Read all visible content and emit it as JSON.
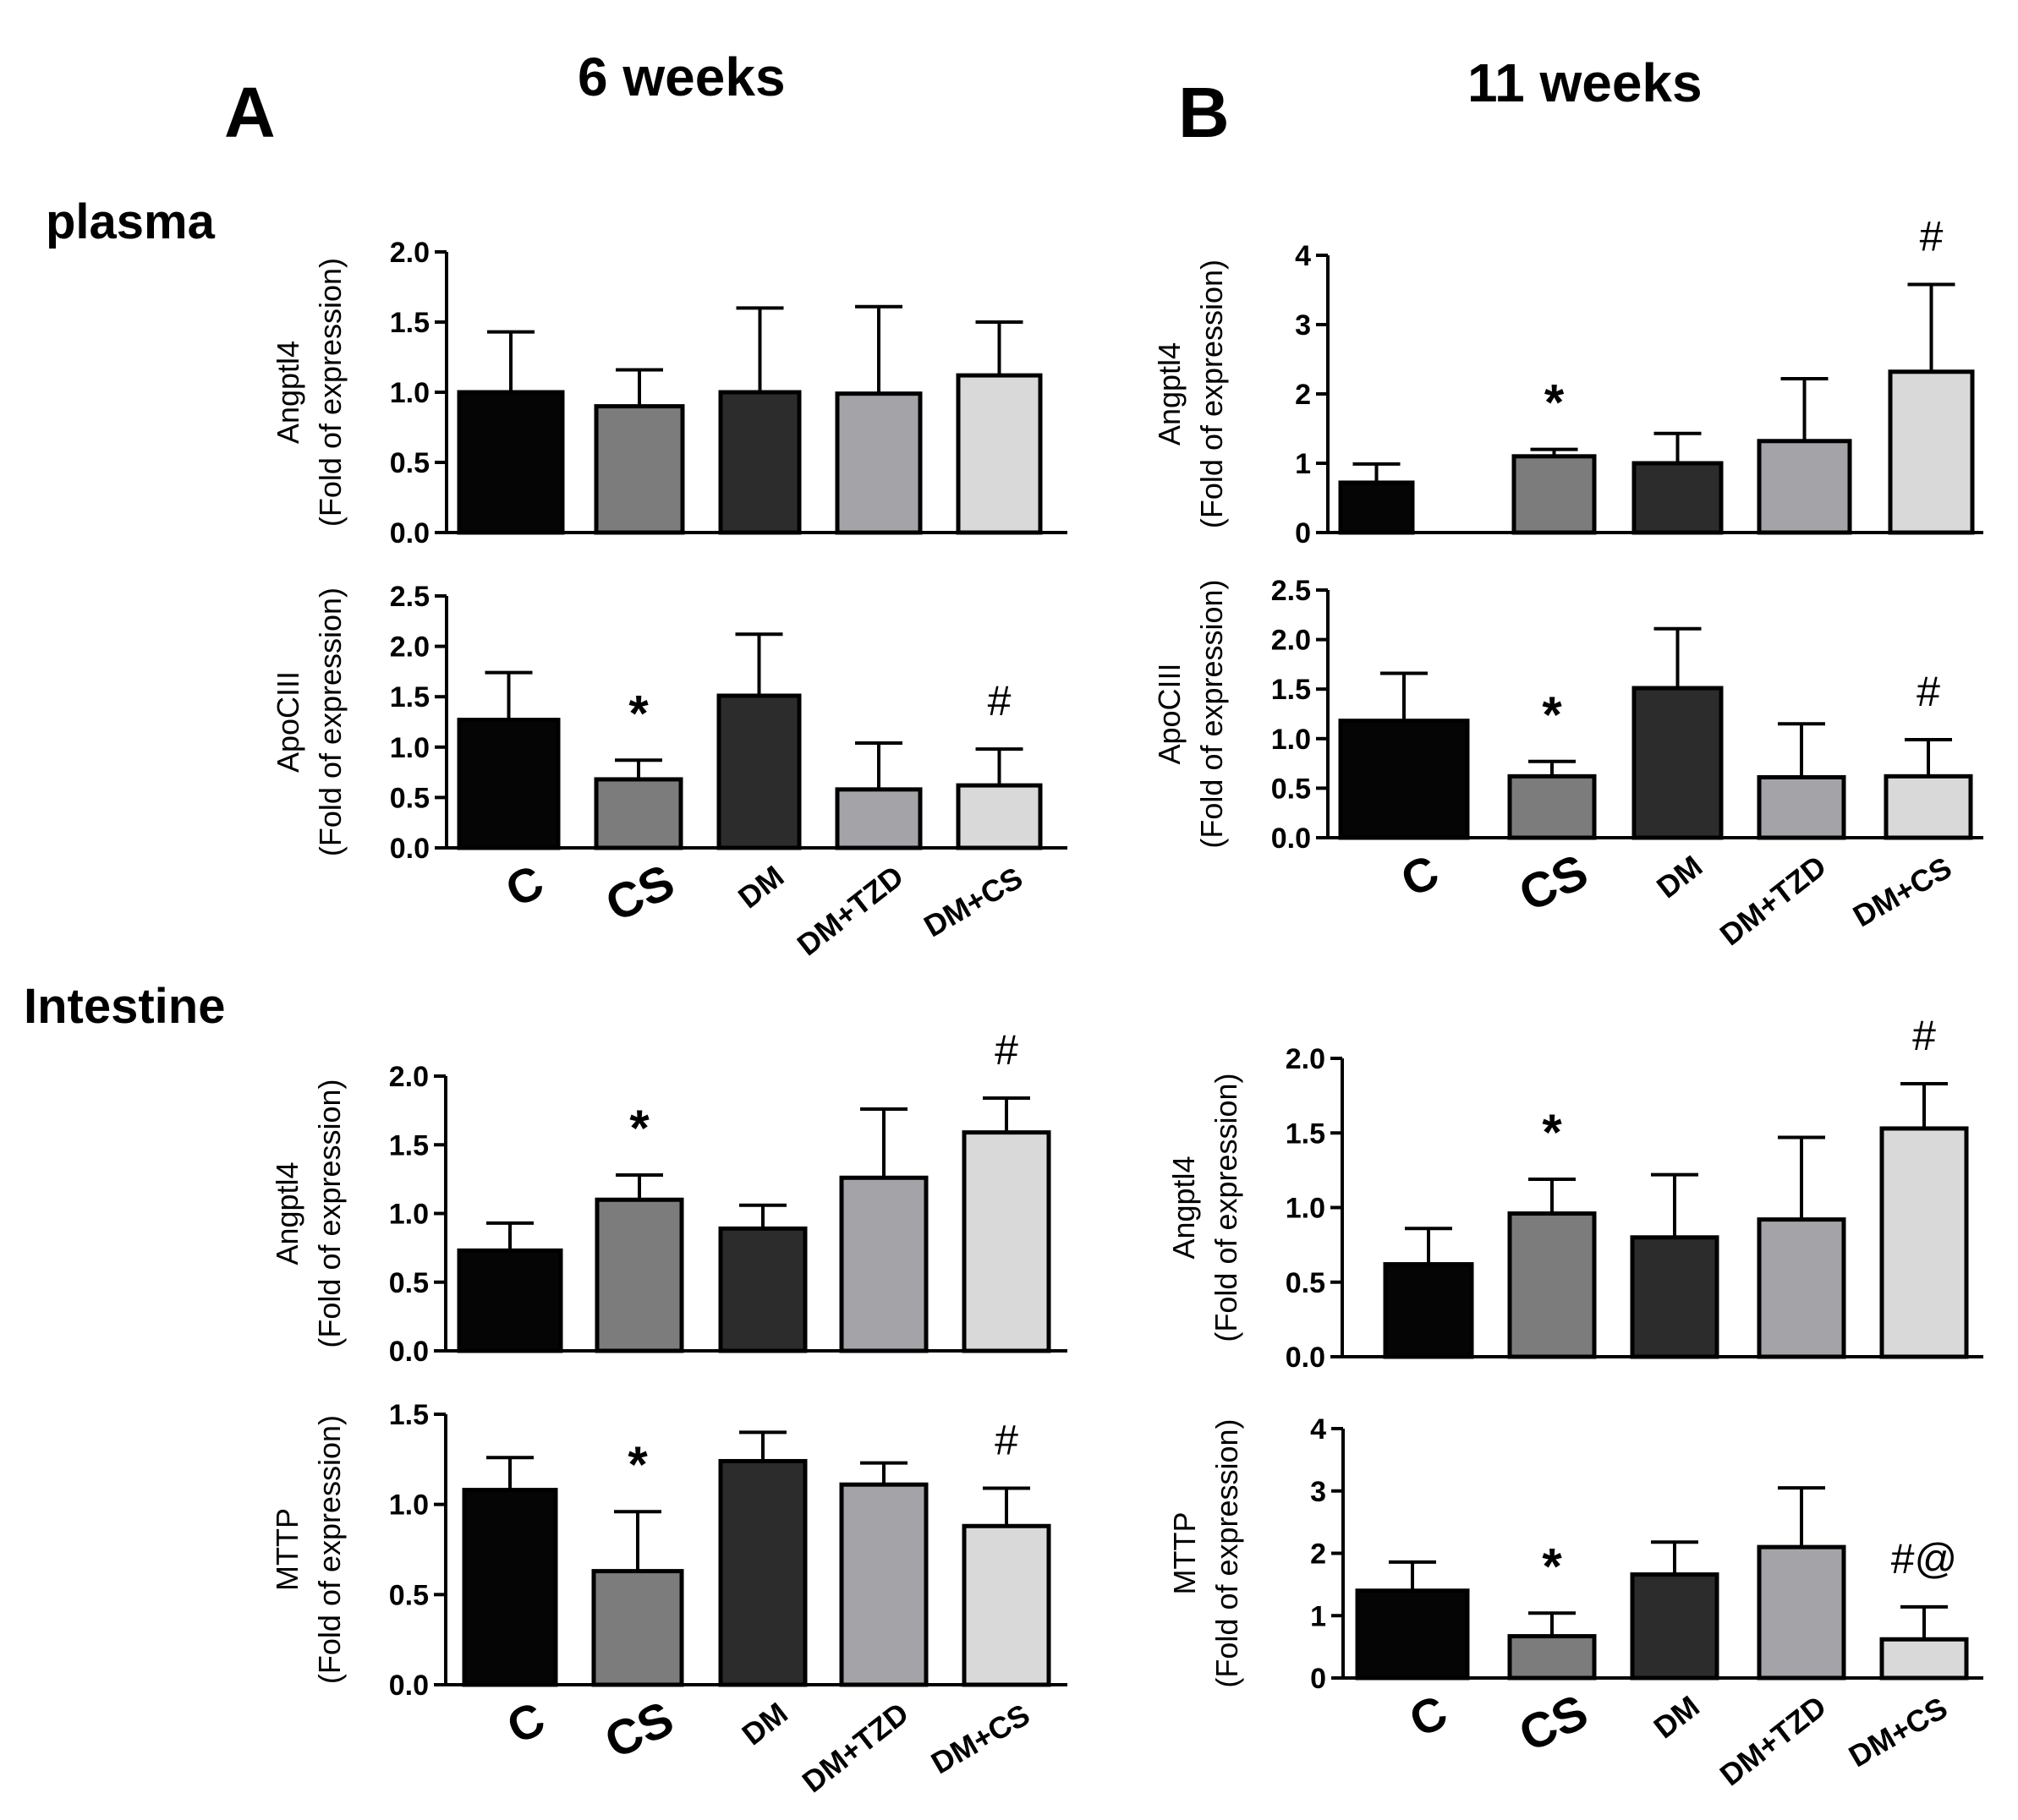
{
  "headers": {
    "panel_a_letter": "A",
    "panel_b_letter": "B",
    "panel_a_title": "6 weeks",
    "panel_b_title": "11 weeks",
    "section_plasma": "plasma",
    "section_intestine": "Intestine"
  },
  "bar_colors": [
    "#050505",
    "#7c7c7c",
    "#2c2c2c",
    "#a3a3a8",
    "#d9d9d9"
  ],
  "chart_data": [
    {
      "id": "a1",
      "type": "bar",
      "panel": "A",
      "section": "plasma",
      "title": "",
      "xlabel": "",
      "ylabel": "Angptl4",
      "ylabel2": "(Fold of expression)",
      "categories": [
        "C",
        "CS",
        "DM",
        "DM+TZD",
        "DM+CS"
      ],
      "values": [
        1.0,
        0.9,
        1.0,
        0.99,
        1.12
      ],
      "errors": [
        0.43,
        0.26,
        0.6,
        0.62,
        0.38
      ],
      "annotations": [
        "",
        "",
        "",
        "",
        ""
      ],
      "ylim": [
        0,
        2.0
      ],
      "yticks": [
        "0.0",
        "0.5",
        "1.0",
        "1.5",
        "2.0"
      ],
      "show_categories": false
    },
    {
      "id": "a2",
      "type": "bar",
      "panel": "A",
      "section": "plasma",
      "title": "",
      "xlabel": "",
      "ylabel": "ApoCIII",
      "ylabel2": "(Fold of expression)",
      "categories": [
        "C",
        "CS",
        "DM",
        "DM+TZD",
        "DM+CS"
      ],
      "values": [
        1.27,
        0.68,
        1.51,
        0.58,
        0.62
      ],
      "errors": [
        0.47,
        0.19,
        0.61,
        0.46,
        0.36
      ],
      "annotations": [
        "",
        "*",
        "",
        "",
        "#"
      ],
      "ylim": [
        0,
        2.5
      ],
      "yticks": [
        "0.0",
        "0.5",
        "1.0",
        "1.5",
        "2.0",
        "2.5"
      ],
      "show_categories": true
    },
    {
      "id": "b1",
      "type": "bar",
      "panel": "B",
      "section": "plasma",
      "title": "",
      "xlabel": "",
      "ylabel": "Angptl4",
      "ylabel2": "(Fold of expression)",
      "categories": [
        "C",
        "CS",
        "DM",
        "DM+TZD",
        "DM+CS"
      ],
      "values": [
        0.72,
        1.1,
        1.0,
        1.32,
        2.32
      ],
      "errors": [
        0.27,
        0.1,
        0.43,
        0.9,
        1.26
      ],
      "annotations": [
        "",
        "*",
        "",
        "",
        "#"
      ],
      "ylim": [
        0,
        4
      ],
      "yticks": [
        "0",
        "1",
        "2",
        "3",
        "4"
      ],
      "show_categories": false
    },
    {
      "id": "b2",
      "type": "bar",
      "panel": "B",
      "section": "plasma",
      "title": "",
      "xlabel": "",
      "ylabel": "ApoCIII",
      "ylabel2": "(Fold of expression)",
      "categories": [
        "C",
        "CS",
        "DM",
        "DM+TZD",
        "DM+CS"
      ],
      "values": [
        1.18,
        0.62,
        1.51,
        0.61,
        0.62
      ],
      "errors": [
        0.48,
        0.15,
        0.6,
        0.54,
        0.37
      ],
      "annotations": [
        "",
        "*",
        "",
        "",
        "#"
      ],
      "ylim": [
        0,
        2.5
      ],
      "yticks": [
        "0.0",
        "0.5",
        "1.0",
        "1.5",
        "2.0",
        "2.5"
      ],
      "show_categories": true
    },
    {
      "id": "a3",
      "type": "bar",
      "panel": "A",
      "section": "Intestine",
      "title": "",
      "xlabel": "",
      "ylabel": "Angptl4",
      "ylabel2": "(Fold of expression)",
      "categories": [
        "C",
        "CS",
        "DM",
        "DM+TZD",
        "DM+CS"
      ],
      "values": [
        0.73,
        1.1,
        0.89,
        1.26,
        1.59
      ],
      "errors": [
        0.2,
        0.18,
        0.17,
        0.5,
        0.25
      ],
      "annotations": [
        "",
        "*",
        "",
        "",
        "#"
      ],
      "ylim": [
        0,
        2.0
      ],
      "yticks": [
        "0.0",
        "0.5",
        "1.0",
        "1.5",
        "2.0"
      ],
      "show_categories": false
    },
    {
      "id": "a4",
      "type": "bar",
      "panel": "A",
      "section": "Intestine",
      "title": "",
      "xlabel": "",
      "ylabel": "MTTP",
      "ylabel2": "(Fold of expression)",
      "categories": [
        "C",
        "CS",
        "DM",
        "DM+TZD",
        "DM+CS"
      ],
      "values": [
        1.08,
        0.63,
        1.24,
        1.11,
        0.88
      ],
      "errors": [
        0.18,
        0.33,
        0.16,
        0.12,
        0.21
      ],
      "annotations": [
        "",
        "*",
        "",
        "",
        "#"
      ],
      "ylim": [
        0,
        1.5
      ],
      "yticks": [
        "0.0",
        "0.5",
        "1.0",
        "1.5"
      ],
      "show_categories": true
    },
    {
      "id": "b3",
      "type": "bar",
      "panel": "B",
      "section": "Intestine",
      "title": "",
      "xlabel": "",
      "ylabel": "Angptl4",
      "ylabel2": "(Fold of expression)",
      "categories": [
        "C",
        "CS",
        "DM",
        "DM+TZD",
        "DM+CS"
      ],
      "values": [
        0.62,
        0.96,
        0.8,
        0.92,
        1.53
      ],
      "errors": [
        0.24,
        0.23,
        0.42,
        0.55,
        0.3
      ],
      "annotations": [
        "",
        "*",
        "",
        "",
        "#"
      ],
      "ylim": [
        0,
        2.0
      ],
      "yticks": [
        "0.0",
        "0.5",
        "1.0",
        "1.5",
        "2.0"
      ],
      "show_categories": false
    },
    {
      "id": "b4",
      "type": "bar",
      "panel": "B",
      "section": "Intestine",
      "title": "",
      "xlabel": "",
      "ylabel": "MTTP",
      "ylabel2": "(Fold of expression)",
      "categories": [
        "C",
        "CS",
        "DM",
        "DM+TZD",
        "DM+CS"
      ],
      "values": [
        1.4,
        0.67,
        1.66,
        2.1,
        0.62
      ],
      "errors": [
        0.46,
        0.37,
        0.52,
        0.95,
        0.52
      ],
      "annotations": [
        "",
        "*",
        "",
        "",
        "#@"
      ],
      "ylim": [
        0,
        4
      ],
      "yticks": [
        "0",
        "1",
        "2",
        "3",
        "4"
      ],
      "show_categories": true
    }
  ]
}
